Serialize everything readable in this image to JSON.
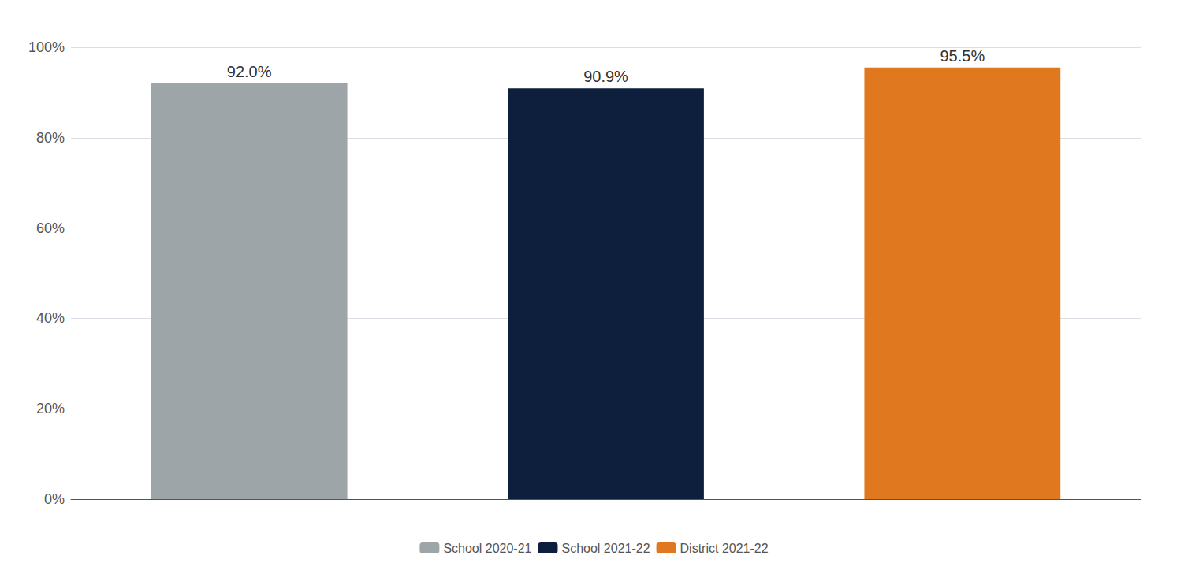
{
  "chart_data": {
    "type": "bar",
    "categories": [
      "School 2020-21",
      "School 2021-22",
      "District 2021-22"
    ],
    "values": [
      0.92,
      0.909,
      0.955
    ],
    "value_labels": [
      "92.0%",
      "90.9%",
      "95.5%"
    ],
    "colors": [
      "#9EA5A8",
      "#0D1F3C",
      "#E07820"
    ],
    "data_labels": true,
    "ylim": [
      0,
      1.0
    ],
    "yticks": [
      {
        "value": 0.0,
        "label": "0%"
      },
      {
        "value": 0.2,
        "label": "20%"
      },
      {
        "value": 0.4,
        "label": "40%"
      },
      {
        "value": 0.6,
        "label": "60%"
      },
      {
        "value": 0.8,
        "label": "80%"
      },
      {
        "value": 1.0,
        "label": "100%"
      }
    ],
    "grid": true,
    "legend": "bottom",
    "tick_labels": "y"
  }
}
